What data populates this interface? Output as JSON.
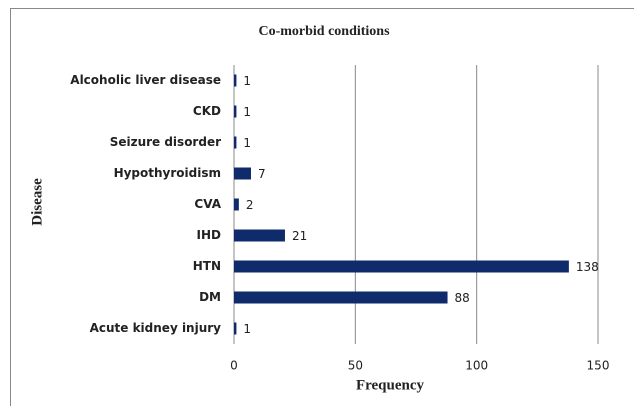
{
  "chart_data": {
    "type": "bar",
    "orientation": "horizontal",
    "title": "Co-morbid conditions",
    "x_label": "Frequency",
    "y_label": "Disease",
    "categories": [
      "Alcoholic liver disease",
      "CKD",
      "Seizure disorder",
      "Hypothyroidism",
      "CVA",
      "IHD",
      "HTN",
      "DM",
      "Acute kidney injury"
    ],
    "values": [
      1,
      1,
      1,
      7,
      2,
      21,
      138,
      88,
      1
    ],
    "color": "#0f2b6b",
    "xlim": [
      0,
      150
    ],
    "xticks": [
      0,
      50,
      100,
      150
    ],
    "grid": true
  }
}
